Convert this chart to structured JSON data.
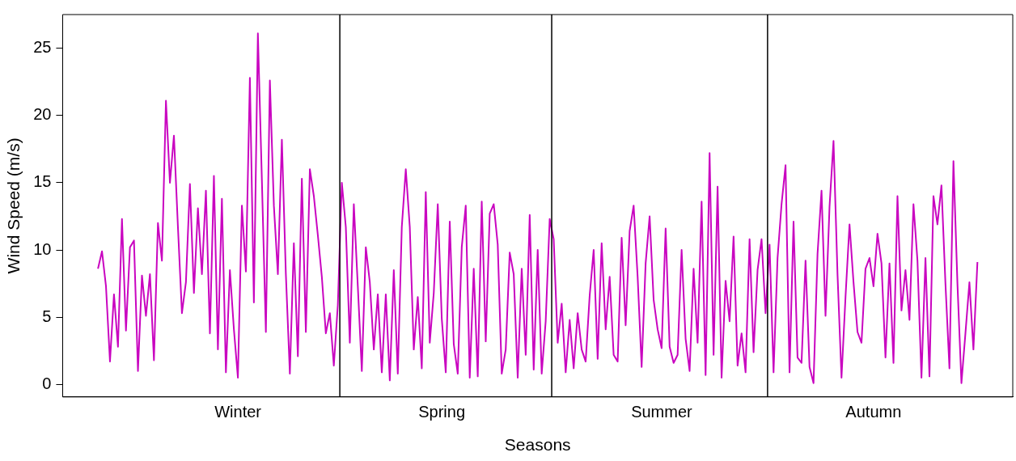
{
  "chart_data": {
    "type": "line",
    "xlabel": "Seasons",
    "ylabel": "Wind Speed (m/s)",
    "color": "#c905c0",
    "categories": [
      null,
      null,
      null,
      null,
      null,
      null,
      null,
      null,
      null,
      null,
      null,
      null,
      null,
      null,
      null,
      null,
      null,
      null,
      null,
      null,
      null,
      null,
      null,
      null,
      null,
      null,
      null,
      null,
      null,
      null,
      null,
      null,
      null,
      null,
      null,
      "Winter",
      null,
      null,
      null,
      null,
      null,
      null,
      null,
      null,
      null,
      null,
      null,
      null,
      null,
      null,
      null,
      null,
      null,
      null,
      null,
      null,
      null,
      null,
      null,
      null,
      null,
      null,
      null,
      null,
      null,
      null,
      null,
      null,
      null,
      null,
      null,
      null,
      null,
      null,
      null,
      null,
      null,
      null,
      null,
      null,
      null,
      null,
      null,
      null,
      null,
      null,
      "Spring",
      null,
      null,
      null,
      null,
      null,
      null,
      null,
      null,
      null,
      null,
      null,
      null,
      null,
      null,
      null,
      null,
      null,
      null,
      null,
      null,
      null,
      null,
      null,
      null,
      null,
      null,
      null,
      null,
      null,
      null,
      null,
      null,
      null,
      null,
      null,
      null,
      null,
      null,
      null,
      null,
      null,
      null,
      null,
      null,
      null,
      null,
      null,
      null,
      null,
      null,
      null,
      null,
      null,
      null,
      "Summer",
      null,
      null,
      null,
      null,
      null,
      null,
      null,
      null,
      null,
      null,
      null,
      null,
      null,
      null,
      null,
      null,
      null,
      null,
      null,
      null,
      null,
      null,
      null,
      null,
      null,
      null,
      null,
      null,
      null,
      null,
      null,
      null,
      null,
      null,
      null,
      null,
      null,
      null,
      null,
      null,
      null,
      null,
      null,
      null,
      null,
      null,
      null,
      null,
      null,
      null,
      null,
      null,
      "Autumn",
      null,
      null,
      null,
      null,
      null,
      null,
      null,
      null,
      null,
      null,
      null,
      null,
      null,
      null,
      null,
      null,
      null,
      null,
      null,
      null,
      null,
      null,
      null,
      null,
      null,
      null
    ],
    "values": [
      8.6,
      9.9,
      7.3,
      1.7,
      6.7,
      2.8,
      12.3,
      4,
      10.2,
      10.7,
      1,
      8.1,
      5.1,
      8.2,
      1.8,
      12,
      9.2,
      21.1,
      15,
      18.5,
      11.7,
      5.3,
      7.6,
      14.9,
      6.8,
      13.1,
      8.2,
      14.4,
      3.8,
      15.5,
      2.6,
      13.8,
      0.9,
      8.5,
      4.1,
      0.5,
      13.3,
      8.4,
      22.8,
      6.1,
      26.1,
      15.2,
      3.9,
      22.6,
      13.3,
      8.2,
      18.2,
      8.2,
      0.8,
      10.5,
      2.1,
      15.3,
      3.9,
      16,
      14,
      11.1,
      8,
      3.8,
      5.3,
      1.4,
      5.9,
      15,
      11.7,
      3.1,
      13.4,
      7.3,
      1,
      10.2,
      7.6,
      2.6,
      6.7,
      0.9,
      6.7,
      0.3,
      8.5,
      0.8,
      11.7,
      16,
      11.7,
      2.6,
      6.5,
      1.2,
      14.3,
      3.1,
      6.8,
      13.4,
      4.9,
      0.9,
      12.1,
      3,
      0.8,
      10.2,
      13.3,
      0.5,
      8.6,
      0.6,
      13.6,
      3.2,
      12.7,
      13.4,
      10.4,
      0.8,
      2.6,
      9.8,
      8.2,
      0.5,
      8.6,
      2.2,
      12.6,
      1.1,
      10,
      0.8,
      4.7,
      12.3,
      10.8,
      3.1,
      6,
      0.9,
      4.8,
      1.2,
      5.3,
      2.6,
      1.7,
      6.6,
      10,
      1.9,
      10.5,
      4.1,
      8,
      2.2,
      1.7,
      10.9,
      4.4,
      11.4,
      13.3,
      8,
      1.3,
      9,
      12.5,
      6.3,
      4.1,
      2.7,
      11.6,
      2.8,
      1.6,
      2.2,
      10,
      3.4,
      1,
      8.6,
      3.1,
      13.6,
      0.7,
      17.2,
      2.2,
      14.7,
      0.5,
      7.7,
      4.7,
      11,
      1.4,
      3.8,
      0.9,
      10.8,
      2.4,
      8.5,
      10.8,
      5.3,
      10.4,
      0.9,
      9.4,
      13.4,
      16.3,
      0.9,
      12.1,
      2,
      1.6,
      9.2,
      1.3,
      0.1,
      9.7,
      14.4,
      5.1,
      13.2,
      18.1,
      8.2,
      0.5,
      6.5,
      11.9,
      7.6,
      3.9,
      3.1,
      8.6,
      9.4,
      7.3,
      11.2,
      9,
      2,
      9,
      1.6,
      14,
      5.5,
      8.5,
      4.8,
      13.4,
      9.2,
      0.5,
      9.4,
      0.6,
      14,
      11.9,
      14.8,
      7.5,
      1.2,
      16.6,
      7.5,
      0.1,
      3.8,
      7.6,
      2.6,
      9.1
    ],
    "ylim": [
      -0.93,
      27.5
    ],
    "yticks": [
      0,
      5,
      10,
      15,
      20,
      25
    ]
  }
}
